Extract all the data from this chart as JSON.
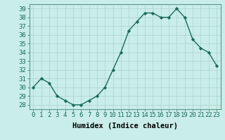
{
  "x": [
    0,
    1,
    2,
    3,
    4,
    5,
    6,
    7,
    8,
    9,
    10,
    11,
    12,
    13,
    14,
    15,
    16,
    17,
    18,
    19,
    20,
    21,
    22,
    23
  ],
  "y": [
    30,
    31,
    30.5,
    29,
    28.5,
    28,
    28,
    28.5,
    29,
    30,
    32,
    34,
    36.5,
    37.5,
    38.5,
    38.5,
    38,
    38,
    39,
    38,
    35.5,
    34.5,
    34,
    32.5
  ],
  "line_color": "#1a6b5a",
  "marker": "D",
  "marker_size": 2.2,
  "linewidth": 1.0,
  "bg_color": "#c9ede8",
  "grid_color": "#b0d8d0",
  "xlabel": "Humidex (Indice chaleur)",
  "xlabel_fontsize": 7.5,
  "tick_fontsize": 6.5,
  "ylim": [
    27.5,
    39.5
  ],
  "xlim": [
    -0.5,
    23.5
  ],
  "yticks": [
    28,
    29,
    30,
    31,
    32,
    33,
    34,
    35,
    36,
    37,
    38,
    39
  ],
  "xticks": [
    0,
    1,
    2,
    3,
    4,
    5,
    6,
    7,
    8,
    9,
    10,
    11,
    12,
    13,
    14,
    15,
    16,
    17,
    18,
    19,
    20,
    21,
    22,
    23
  ]
}
